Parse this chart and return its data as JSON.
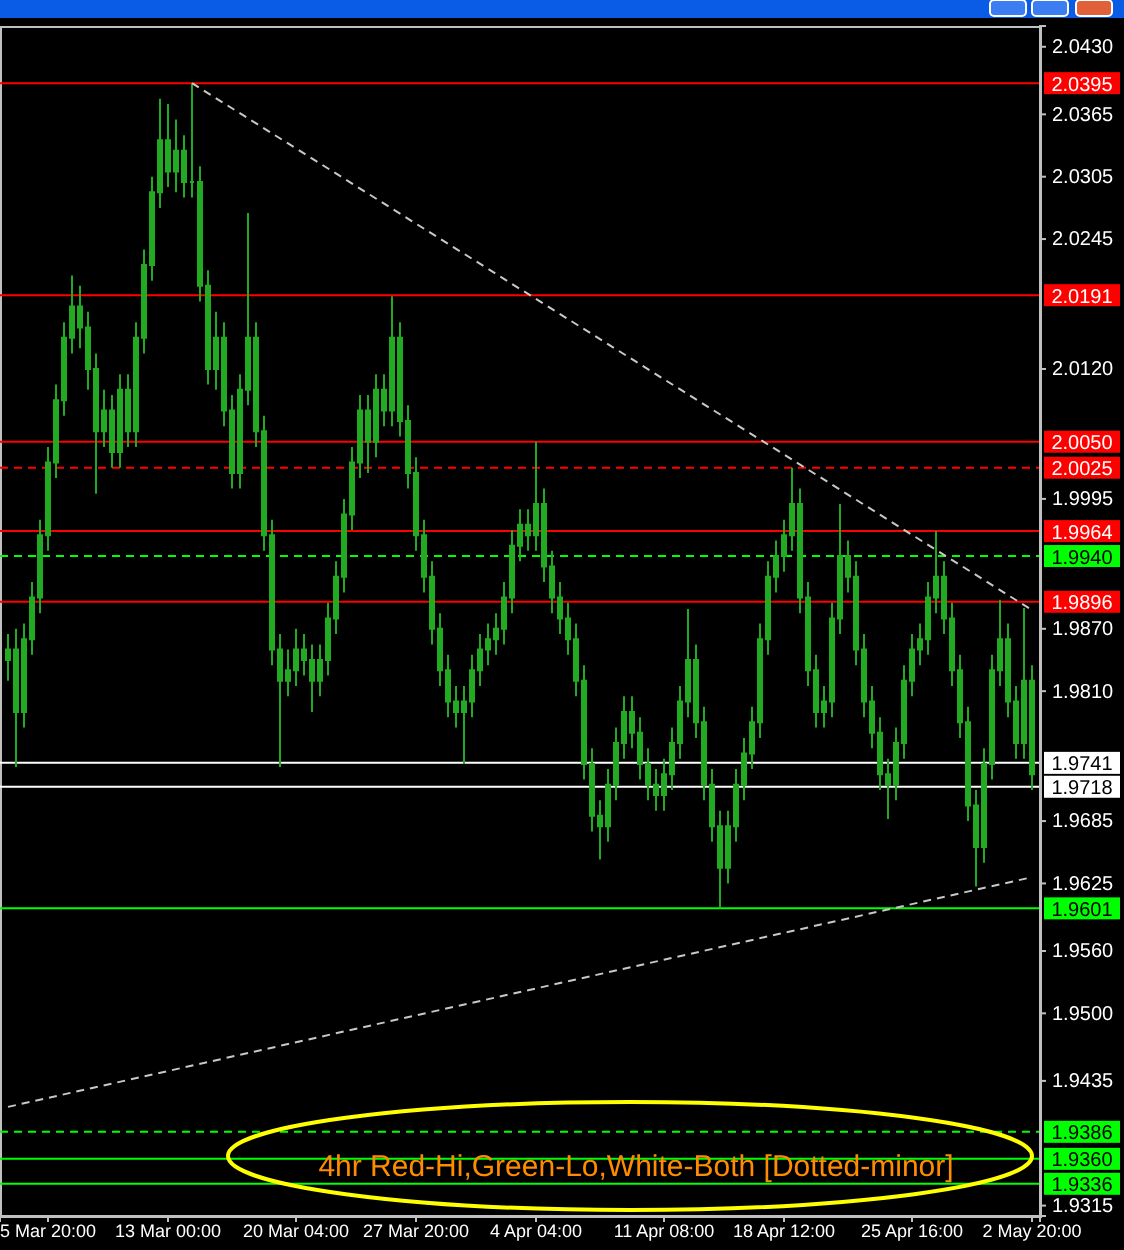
{
  "chart_data": {
    "type": "candlestick",
    "categories": [
      null,
      null,
      null,
      null,
      null,
      "5 Mar 20:00",
      null,
      null,
      null,
      null,
      null,
      null,
      null,
      null,
      null,
      null,
      null,
      null,
      null,
      null,
      "13 Mar 00:00",
      null,
      null,
      null,
      null,
      null,
      null,
      null,
      null,
      null,
      null,
      null,
      null,
      null,
      null,
      null,
      "20 Mar 04:00",
      null,
      null,
      null,
      null,
      null,
      null,
      null,
      null,
      null,
      null,
      null,
      null,
      null,
      null,
      "27 Mar 20:00",
      null,
      null,
      null,
      null,
      null,
      null,
      null,
      null,
      null,
      null,
      null,
      null,
      null,
      null,
      "4 Apr 04:00",
      null,
      null,
      null,
      null,
      null,
      null,
      null,
      null,
      null,
      null,
      null,
      null,
      null,
      null,
      null,
      "11 Apr 08:00",
      null,
      null,
      null,
      null,
      null,
      null,
      null,
      null,
      null,
      null,
      null,
      null,
      null,
      null,
      "18 Apr 12:00",
      null,
      null,
      null,
      null,
      null,
      null,
      null,
      null,
      null,
      null,
      null,
      null,
      null,
      null,
      null,
      "25 Apr 16:00",
      null,
      null,
      null,
      null,
      null,
      null,
      null,
      null,
      null,
      null,
      null,
      null,
      null,
      null,
      "2 May 20:00"
    ],
    "series": [
      {
        "type": "candlestick",
        "color": "#22aa22",
        "ohlc": [
          [
            1.984,
            1.9865,
            1.982,
            1.985
          ],
          [
            1.985,
            1.987,
            1.9737,
            1.979
          ],
          [
            1.979,
            1.9875,
            1.9775,
            1.986
          ],
          [
            1.986,
            1.9915,
            1.9845,
            1.99
          ],
          [
            1.99,
            1.9975,
            1.9885,
            1.996
          ],
          [
            1.996,
            2.0045,
            1.9945,
            2.003
          ],
          [
            2.003,
            2.0105,
            2.0015,
            2.009
          ],
          [
            2.009,
            2.0165,
            2.0075,
            2.015
          ],
          [
            2.015,
            2.021,
            2.0135,
            2.018
          ],
          [
            2.018,
            2.02,
            2.014,
            2.016
          ],
          [
            2.016,
            2.0175,
            2.01,
            2.012
          ],
          [
            2.012,
            2.0135,
            2.0,
            2.006
          ],
          [
            2.006,
            2.01,
            2.0045,
            2.008
          ],
          [
            2.008,
            2.0095,
            2.0025,
            2.004
          ],
          [
            2.004,
            2.0115,
            2.0025,
            2.01
          ],
          [
            2.01,
            2.0115,
            2.0045,
            2.006
          ],
          [
            2.006,
            2.0165,
            2.0045,
            2.015
          ],
          [
            2.015,
            2.0235,
            2.0135,
            2.022
          ],
          [
            2.022,
            2.0305,
            2.0205,
            2.029
          ],
          [
            2.029,
            2.038,
            2.0275,
            2.034
          ],
          [
            2.034,
            2.0375,
            2.0295,
            2.031
          ],
          [
            2.031,
            2.036,
            2.029,
            2.033
          ],
          [
            2.033,
            2.0345,
            2.0285,
            2.03
          ],
          [
            2.03,
            2.0395,
            2.0285,
            2.03
          ],
          [
            2.03,
            2.0315,
            2.0185,
            2.02
          ],
          [
            2.02,
            2.0215,
            2.0105,
            2.012
          ],
          [
            2.012,
            2.0175,
            2.01,
            2.015
          ],
          [
            2.015,
            2.0165,
            2.0065,
            2.008
          ],
          [
            2.008,
            2.0095,
            2.0005,
            2.002
          ],
          [
            2.002,
            2.0115,
            2.0005,
            2.01
          ],
          [
            2.01,
            2.027,
            2.0085,
            2.015
          ],
          [
            2.015,
            2.0165,
            2.0045,
            2.006
          ],
          [
            2.006,
            2.0075,
            1.9945,
            1.996
          ],
          [
            1.996,
            1.9975,
            1.9835,
            1.985
          ],
          [
            1.985,
            1.9865,
            1.9737,
            1.982
          ],
          [
            1.982,
            1.985,
            1.9805,
            1.983
          ],
          [
            1.983,
            1.987,
            1.9815,
            1.985
          ],
          [
            1.985,
            1.9865,
            1.9825,
            1.984
          ],
          [
            1.984,
            1.9855,
            1.979,
            1.982
          ],
          [
            1.982,
            1.9855,
            1.9805,
            1.984
          ],
          [
            1.984,
            1.9895,
            1.9825,
            1.988
          ],
          [
            1.988,
            1.9935,
            1.9865,
            1.992
          ],
          [
            1.992,
            1.9995,
            1.9905,
            1.998
          ],
          [
            1.998,
            2.0045,
            1.9965,
            2.003
          ],
          [
            2.003,
            2.0095,
            2.0015,
            2.008
          ],
          [
            2.008,
            2.0095,
            2.002,
            2.005
          ],
          [
            2.005,
            2.0115,
            2.0035,
            2.01
          ],
          [
            2.01,
            2.0115,
            2.0065,
            2.008
          ],
          [
            2.008,
            2.019,
            2.0065,
            2.015
          ],
          [
            2.015,
            2.0165,
            2.0055,
            2.007
          ],
          [
            2.007,
            2.0085,
            2.0005,
            2.002
          ],
          [
            2.002,
            2.0035,
            1.9945,
            1.996
          ],
          [
            1.996,
            1.9975,
            1.9905,
            1.992
          ],
          [
            1.992,
            1.9935,
            1.9855,
            1.987
          ],
          [
            1.987,
            1.9885,
            1.9815,
            1.983
          ],
          [
            1.983,
            1.9845,
            1.9785,
            1.98
          ],
          [
            1.98,
            1.9815,
            1.9775,
            1.979
          ],
          [
            1.979,
            1.9815,
            1.974,
            1.98
          ],
          [
            1.98,
            1.9845,
            1.9785,
            1.983
          ],
          [
            1.983,
            1.9865,
            1.9815,
            1.985
          ],
          [
            1.985,
            1.9875,
            1.9835,
            1.986
          ],
          [
            1.986,
            1.9885,
            1.9845,
            1.987
          ],
          [
            1.987,
            1.9915,
            1.9855,
            1.99
          ],
          [
            1.99,
            1.9965,
            1.9885,
            1.995
          ],
          [
            1.995,
            1.9985,
            1.9935,
            1.997
          ],
          [
            1.997,
            1.9985,
            1.9945,
            1.996
          ],
          [
            1.996,
            2.005,
            1.9945,
            1.999
          ],
          [
            1.999,
            2.0005,
            1.9915,
            1.993
          ],
          [
            1.993,
            1.9945,
            1.9885,
            1.99
          ],
          [
            1.99,
            1.9915,
            1.9865,
            1.988
          ],
          [
            1.988,
            1.9895,
            1.9845,
            1.986
          ],
          [
            1.986,
            1.9875,
            1.9805,
            1.982
          ],
          [
            1.982,
            1.9835,
            1.9725,
            1.974
          ],
          [
            1.974,
            1.9755,
            1.9675,
            1.969
          ],
          [
            1.969,
            1.9705,
            1.9648,
            1.968
          ],
          [
            1.968,
            1.9735,
            1.9665,
            1.972
          ],
          [
            1.972,
            1.9775,
            1.9705,
            1.976
          ],
          [
            1.976,
            1.9805,
            1.9745,
            1.979
          ],
          [
            1.979,
            1.9805,
            1.9755,
            1.977
          ],
          [
            1.977,
            1.9785,
            1.9725,
            1.974
          ],
          [
            1.974,
            1.9755,
            1.9705,
            1.972
          ],
          [
            1.972,
            1.9735,
            1.9695,
            1.971
          ],
          [
            1.971,
            1.9745,
            1.9695,
            1.973
          ],
          [
            1.973,
            1.9775,
            1.9715,
            1.976
          ],
          [
            1.976,
            1.9815,
            1.9745,
            1.98
          ],
          [
            1.98,
            1.9889,
            1.9785,
            1.984
          ],
          [
            1.984,
            1.9855,
            1.9765,
            1.978
          ],
          [
            1.978,
            1.9795,
            1.9705,
            1.972
          ],
          [
            1.972,
            1.9735,
            1.9665,
            1.968
          ],
          [
            1.968,
            1.9695,
            1.9601,
            1.964
          ],
          [
            1.964,
            1.9695,
            1.9625,
            1.968
          ],
          [
            1.968,
            1.9735,
            1.9665,
            1.972
          ],
          [
            1.972,
            1.9765,
            1.9705,
            1.975
          ],
          [
            1.975,
            1.9795,
            1.9735,
            1.978
          ],
          [
            1.978,
            1.9875,
            1.9765,
            1.986
          ],
          [
            1.986,
            1.9935,
            1.9845,
            1.992
          ],
          [
            1.992,
            1.9955,
            1.9905,
            1.994
          ],
          [
            1.994,
            1.9975,
            1.9925,
            1.996
          ],
          [
            1.996,
            2.0025,
            1.9945,
            1.999
          ],
          [
            1.999,
            2.0005,
            1.9885,
            1.99
          ],
          [
            1.99,
            1.9915,
            1.9815,
            1.983
          ],
          [
            1.983,
            1.9845,
            1.9775,
            1.979
          ],
          [
            1.979,
            1.9815,
            1.9775,
            1.98
          ],
          [
            1.98,
            1.9895,
            1.9785,
            1.988
          ],
          [
            1.988,
            1.999,
            1.9865,
            1.994
          ],
          [
            1.994,
            1.9955,
            1.9905,
            1.992
          ],
          [
            1.992,
            1.9935,
            1.9835,
            1.985
          ],
          [
            1.985,
            1.9865,
            1.9785,
            1.98
          ],
          [
            1.98,
            1.9815,
            1.9755,
            1.977
          ],
          [
            1.977,
            1.9785,
            1.9715,
            1.973
          ],
          [
            1.973,
            1.9745,
            1.9687,
            1.972
          ],
          [
            1.972,
            1.9775,
            1.9705,
            1.976
          ],
          [
            1.976,
            1.9835,
            1.9745,
            1.982
          ],
          [
            1.982,
            1.9865,
            1.9805,
            1.985
          ],
          [
            1.985,
            1.9875,
            1.9835,
            1.986
          ],
          [
            1.986,
            1.9915,
            1.9845,
            1.99
          ],
          [
            1.99,
            1.9964,
            1.9885,
            1.992
          ],
          [
            1.992,
            1.9935,
            1.9865,
            1.988
          ],
          [
            1.988,
            1.9895,
            1.9815,
            1.983
          ],
          [
            1.983,
            1.9845,
            1.9765,
            1.978
          ],
          [
            1.978,
            1.9795,
            1.9685,
            1.97
          ],
          [
            1.97,
            1.9715,
            1.9622,
            1.966
          ],
          [
            1.966,
            1.9755,
            1.9645,
            1.974
          ],
          [
            1.974,
            1.9845,
            1.9725,
            1.983
          ],
          [
            1.983,
            1.9898,
            1.9815,
            1.986
          ],
          [
            1.986,
            1.9875,
            1.9785,
            1.98
          ],
          [
            1.98,
            1.9815,
            1.9745,
            1.976
          ],
          [
            1.976,
            1.989,
            1.9745,
            1.982
          ],
          [
            1.982,
            1.9835,
            1.9715,
            1.973
          ]
        ]
      },
      {
        "type": "line",
        "color": "#c8c8c8",
        "line_style": "dashed",
        "values": [
          null,
          null,
          null,
          null,
          null,
          null,
          null,
          null,
          null,
          null,
          null,
          null,
          null,
          null,
          null,
          null,
          null,
          null,
          null,
          null,
          null,
          null,
          null,
          2.0395,
          null,
          null,
          null,
          null,
          null,
          null,
          null,
          null,
          null,
          null,
          null,
          null,
          null,
          null,
          null,
          null,
          null,
          null,
          null,
          null,
          null,
          null,
          null,
          null,
          null,
          null,
          null,
          null,
          null,
          null,
          null,
          null,
          null,
          null,
          null,
          null,
          null,
          null,
          null,
          null,
          null,
          null,
          null,
          null,
          null,
          null,
          null,
          null,
          null,
          null,
          null,
          null,
          null,
          null,
          null,
          null,
          null,
          null,
          null,
          null,
          null,
          null,
          null,
          null,
          null,
          null,
          null,
          null,
          null,
          null,
          null,
          null,
          null,
          null,
          null,
          null,
          null,
          null,
          null,
          null,
          null,
          null,
          null,
          null,
          null,
          null,
          null,
          null,
          null,
          null,
          null,
          null,
          null,
          null,
          null,
          null,
          null,
          null,
          null,
          null,
          null,
          null,
          null,
          null,
          1.9888
        ]
      },
      {
        "type": "line",
        "color": "#c8c8c8",
        "line_style": "dashed",
        "values": [
          1.941,
          null,
          null,
          null,
          null,
          null,
          null,
          null,
          null,
          null,
          null,
          null,
          null,
          null,
          null,
          null,
          null,
          null,
          null,
          null,
          null,
          null,
          null,
          null,
          null,
          null,
          null,
          null,
          null,
          null,
          null,
          null,
          null,
          null,
          null,
          null,
          null,
          null,
          null,
          null,
          null,
          null,
          null,
          null,
          null,
          null,
          null,
          null,
          null,
          null,
          null,
          null,
          null,
          null,
          null,
          null,
          null,
          null,
          null,
          null,
          null,
          null,
          null,
          null,
          null,
          null,
          null,
          null,
          null,
          null,
          null,
          null,
          null,
          null,
          null,
          null,
          null,
          null,
          null,
          null,
          null,
          null,
          null,
          null,
          null,
          null,
          null,
          null,
          null,
          null,
          null,
          null,
          null,
          null,
          null,
          null,
          null,
          null,
          null,
          null,
          null,
          null,
          null,
          null,
          null,
          null,
          null,
          null,
          null,
          null,
          null,
          null,
          null,
          null,
          null,
          null,
          null,
          null,
          null,
          null,
          null,
          null,
          null,
          null,
          null,
          null,
          null,
          null,
          1.9631
        ]
      }
    ],
    "ylim": [
      1.9305,
      2.045
    ],
    "yticks": [
      {
        "value": 2.043,
        "label": "2.0430"
      },
      2.0365,
      2.0305,
      2.0245,
      {
        "value": 2.012,
        "label": "2.0120"
      },
      1.9995,
      {
        "value": 1.987,
        "label": "1.9870"
      },
      {
        "value": 1.981,
        "label": "1.9810"
      },
      1.9685,
      1.9625,
      {
        "value": 1.956,
        "label": "1.9560"
      },
      {
        "value": 1.95,
        "label": "1.9500"
      },
      1.9435,
      1.9315
    ],
    "ref_lines": [
      {
        "axis": "y",
        "value": 2.0395,
        "label": "2.0395",
        "color": "#ff0000",
        "line_style": "solid"
      },
      {
        "axis": "y",
        "value": 2.0191,
        "label": "2.0191",
        "color": "#ff0000",
        "line_style": "solid"
      },
      {
        "axis": "y",
        "value": 2.005,
        "label": "2.0050",
        "color": "#ff0000",
        "line_style": "solid"
      },
      {
        "axis": "y",
        "value": 2.0025,
        "label": "2.0025",
        "color": "#ff0000",
        "line_style": "dashed"
      },
      {
        "axis": "y",
        "value": 1.9964,
        "label": "1.9964",
        "color": "#ff0000",
        "line_style": "solid"
      },
      {
        "axis": "y",
        "value": 1.994,
        "label": "1.9940",
        "color": "#00ff00",
        "line_style": "dashed"
      },
      {
        "axis": "y",
        "value": 1.9896,
        "label": "1.9896",
        "color": "#ff0000",
        "line_style": "solid"
      },
      {
        "axis": "y",
        "value": 1.9741,
        "label": "1.9741",
        "color": "#ffffff",
        "line_style": "solid"
      },
      {
        "axis": "y",
        "value": 1.9718,
        "label": "1.9718",
        "color": "#ffffff",
        "line_style": "solid"
      },
      {
        "axis": "y",
        "value": 1.9601,
        "label": "1.9601",
        "color": "#00ff00",
        "line_style": "solid"
      },
      {
        "axis": "y",
        "value": 1.9386,
        "label": "1.9386",
        "color": "#00ff00",
        "line_style": "dashed"
      },
      {
        "axis": "y",
        "value": 1.936,
        "label": "1.9360",
        "color": "#00ff00",
        "line_style": "solid"
      },
      {
        "axis": "y",
        "value": 1.9336,
        "label": "1.9336",
        "color": "#00ff00",
        "line_style": "solid"
      }
    ],
    "annotations": [
      "4hr Red-Hi,Green-Lo,White-Both [Dotted-minor]"
    ]
  }
}
